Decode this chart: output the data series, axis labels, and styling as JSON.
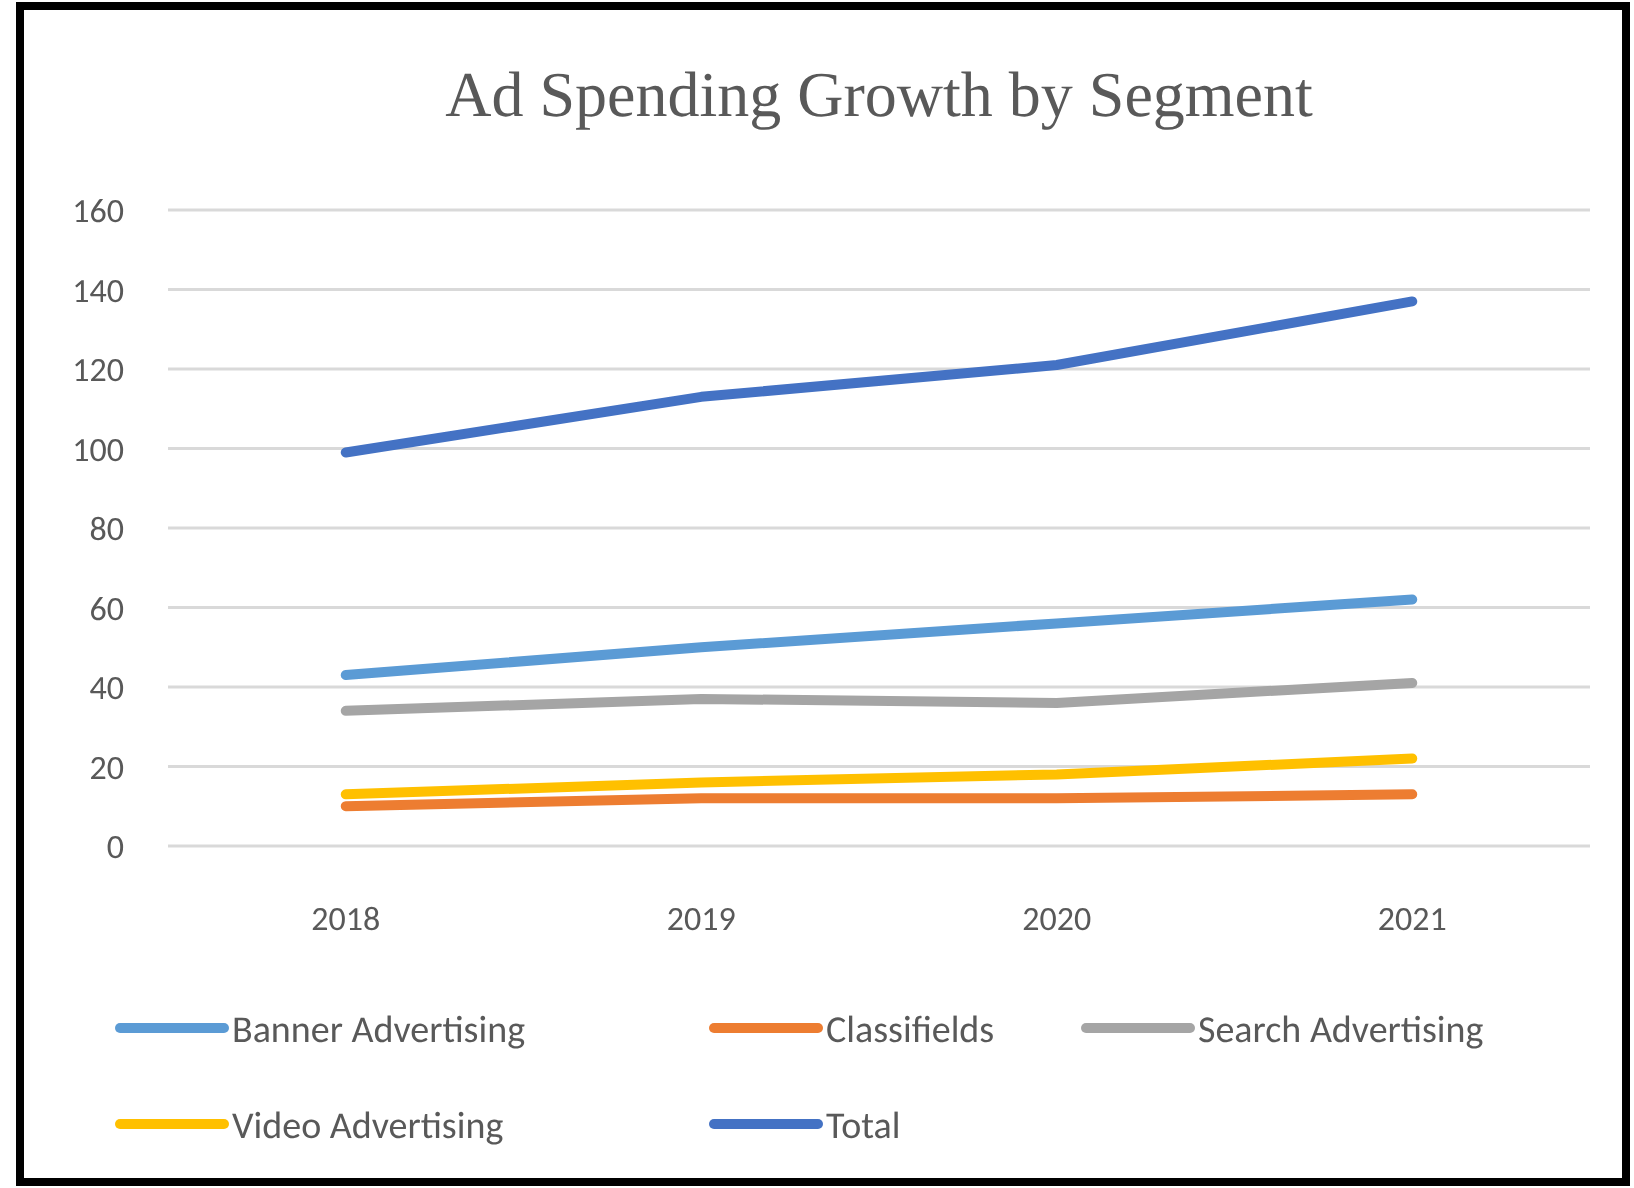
{
  "chart_data": {
    "type": "line",
    "title": "Ad Spending Growth by Segment",
    "categories": [
      "2018",
      "2019",
      "2020",
      "2021"
    ],
    "series": [
      {
        "name": "Banner Advertising",
        "color": "#5b9bd5",
        "values": [
          43,
          50,
          56,
          62
        ]
      },
      {
        "name": "Classifields",
        "color": "#ed7d31",
        "values": [
          10,
          12,
          12,
          13
        ]
      },
      {
        "name": "Search Advertising",
        "color": "#a5a5a5",
        "values": [
          34,
          37,
          36,
          41
        ]
      },
      {
        "name": "Video Advertising",
        "color": "#ffc000",
        "values": [
          13,
          16,
          18,
          22
        ]
      },
      {
        "name": "Total",
        "color": "#4472c4",
        "values": [
          99,
          113,
          121,
          137
        ]
      }
    ],
    "ylim": [
      0,
      160
    ],
    "yticks": [
      0,
      20,
      40,
      60,
      80,
      100,
      120,
      140,
      160
    ],
    "grid": "y",
    "legend": "bottom",
    "marker": "none",
    "line_style": "solid"
  }
}
